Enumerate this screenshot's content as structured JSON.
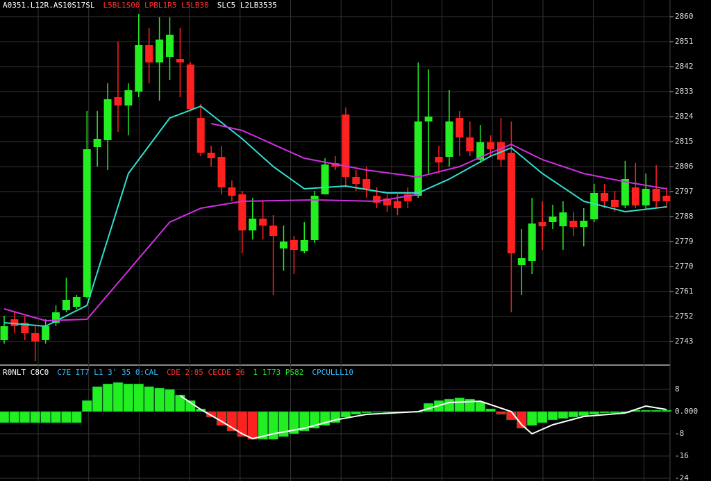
{
  "chart_data": {
    "type": "candlestick",
    "header": [
      {
        "text": "A0351.L12R.AS10S17SL",
        "color": "#ffffff"
      },
      {
        "text": "L5BL1S00 LPBL1R5 L5LB30",
        "color": "#ff3030"
      },
      {
        "text": "SLC5 L2LB3535",
        "color": "#ffffff"
      }
    ],
    "up_color": "#22ee22",
    "down_color": "#ff2020",
    "ylim": [
      2734.75,
      2866
    ],
    "yticks": [
      2860,
      2851,
      2842,
      2833,
      2824,
      2815,
      2806,
      2797,
      2788,
      2779,
      2770,
      2761,
      2752,
      2743
    ],
    "grid": true,
    "ohlc": [
      [
        2743.5,
        2752.25,
        2742.25,
        2748.5
      ],
      [
        2751,
        2753.5,
        2746,
        2748.5
      ],
      [
        2749.75,
        2752.25,
        2743.5,
        2746
      ],
      [
        2746,
        2748.5,
        2736,
        2743
      ],
      [
        2743.5,
        2751,
        2742.25,
        2748.5
      ],
      [
        2749.75,
        2756,
        2748.5,
        2753.5
      ],
      [
        2754.25,
        2766,
        2753.5,
        2758
      ],
      [
        2755.5,
        2759.75,
        2754.75,
        2759
      ],
      [
        2759,
        2826,
        2758.5,
        2812.25
      ],
      [
        2813,
        2826,
        2806,
        2816
      ],
      [
        2815.5,
        2836,
        2804.75,
        2830.25
      ],
      [
        2831,
        2851,
        2818.5,
        2828
      ],
      [
        2828,
        2836,
        2817.25,
        2833.5
      ],
      [
        2833,
        2861,
        2831,
        2849.75
      ],
      [
        2849.75,
        2856,
        2836,
        2843.5
      ],
      [
        2843.5,
        2859.75,
        2829.75,
        2851.75
      ],
      [
        2845.5,
        2859.75,
        2837.25,
        2853.5
      ],
      [
        2844.75,
        2856,
        2831,
        2843.5
      ],
      [
        2842.75,
        2843.5,
        2826,
        2826.75
      ],
      [
        2823.5,
        2828.5,
        2809.75,
        2811
      ],
      [
        2811,
        2813.5,
        2806,
        2809
      ],
      [
        2809.5,
        2813.5,
        2796,
        2798.5
      ],
      [
        2798.5,
        2801,
        2793.5,
        2795.5
      ],
      [
        2796,
        2797.25,
        2774.75,
        2783
      ],
      [
        2783,
        2794.75,
        2779.75,
        2787.25
      ],
      [
        2787.25,
        2793.5,
        2779.75,
        2784.75
      ],
      [
        2784.75,
        2788.5,
        2759.75,
        2781
      ],
      [
        2776.5,
        2784.75,
        2768.5,
        2779
      ],
      [
        2779.5,
        2781,
        2767.25,
        2776
      ],
      [
        2775.5,
        2786,
        2774.75,
        2779.5
      ],
      [
        2779.5,
        2797.25,
        2778.5,
        2795.5
      ],
      [
        2796,
        2809,
        2796,
        2806.75
      ],
      [
        2807.25,
        2809.75,
        2804.75,
        2806
      ],
      [
        2824.75,
        2827.25,
        2798.5,
        2802.25
      ],
      [
        2802.25,
        2804.75,
        2797.25,
        2799.75
      ],
      [
        2801.5,
        2806,
        2794.75,
        2798
      ],
      [
        2795.5,
        2798.5,
        2791,
        2793
      ],
      [
        2794.5,
        2796,
        2789.75,
        2792
      ],
      [
        2793.5,
        2796,
        2788.5,
        2791
      ],
      [
        2796,
        2798.5,
        2791,
        2793.5
      ],
      [
        2795.5,
        2843.5,
        2794.75,
        2822.25
      ],
      [
        2822.25,
        2841,
        2803.5,
        2824
      ],
      [
        2809.5,
        2813.5,
        2803.5,
        2807.5
      ],
      [
        2809.5,
        2833.5,
        2806,
        2822.25
      ],
      [
        2823.5,
        2826,
        2809.75,
        2816.5
      ],
      [
        2816.5,
        2822.25,
        2809.75,
        2811.5
      ],
      [
        2808.5,
        2821,
        2807.25,
        2814.75
      ],
      [
        2814.75,
        2817.25,
        2809.75,
        2812.25
      ],
      [
        2814.75,
        2823.5,
        2806,
        2808.5
      ],
      [
        2811,
        2822.25,
        2753.5,
        2774.75
      ],
      [
        2770.5,
        2783.5,
        2759.75,
        2773
      ],
      [
        2772,
        2794.75,
        2767.25,
        2785.5
      ],
      [
        2786,
        2793.5,
        2776,
        2784.5
      ],
      [
        2786,
        2792.25,
        2783.5,
        2788
      ],
      [
        2784.5,
        2793.5,
        2776,
        2789.5
      ],
      [
        2786.5,
        2789.75,
        2781,
        2784.25
      ],
      [
        2784.25,
        2791,
        2777.25,
        2786.5
      ],
      [
        2787,
        2799.75,
        2786,
        2796.5
      ],
      [
        2796.5,
        2799.75,
        2791,
        2793.5
      ],
      [
        2794,
        2797.25,
        2789.75,
        2791.5
      ],
      [
        2792,
        2808,
        2791,
        2801.5
      ],
      [
        2798.5,
        2807.25,
        2791,
        2792
      ],
      [
        2792,
        2803.5,
        2790.5,
        2798
      ],
      [
        2798,
        2806.5,
        2791,
        2793.5
      ],
      [
        2795.5,
        2798.5,
        2791,
        2793.5
      ]
    ],
    "averages": [
      {
        "color": "#30e0d0",
        "x": [
          0,
          4,
          8,
          12,
          16,
          19,
          23,
          26,
          29,
          33,
          37,
          40,
          43,
          47,
          49,
          52,
          56,
          60,
          64
        ],
        "values": [
          2749.75,
          2748.5,
          2756,
          2803.5,
          2823.5,
          2827.75,
          2816,
          2806,
          2798,
          2799,
          2796.5,
          2796.5,
          2801.5,
          2809.75,
          2812.75,
          2803.5,
          2793.5,
          2789.75,
          2791.5
        ]
      },
      {
        "color": "#d030e0",
        "x": [
          0,
          4,
          8,
          12,
          16,
          19,
          23,
          30,
          36,
          40
        ],
        "values": [
          2754.75,
          2750.5,
          2751,
          2768.5,
          2786,
          2791,
          2793.5,
          2794,
          2793.5,
          2796
        ]
      },
      {
        "color": "#d030e0",
        "x": [
          20,
          23,
          29,
          35,
          40,
          44,
          47,
          49,
          52,
          56,
          60,
          64
        ],
        "values": [
          2821.5,
          2819,
          2809,
          2804.75,
          2802.25,
          2806,
          2811,
          2814,
          2808.5,
          2803.5,
          2800.5,
          2798
        ]
      }
    ],
    "macd": {
      "header": [
        {
          "text": "R0NLT C8C0",
          "color": "#ffffff"
        },
        {
          "text": "C7E IT7 L1 3' 35 0:CAL",
          "color": "#30c0ff"
        },
        {
          "text": "CDE 2:85 CECDE 26",
          "color": "#ff3030"
        },
        {
          "text": "1 1T73 PS82",
          "color": "#22ee22"
        },
        {
          "text": "CPCULLL10",
          "color": "#30c0ff"
        }
      ],
      "ylim": [
        -25,
        16.5
      ],
      "yticks": [
        8,
        {
          "value": 0,
          "label": "0.000"
        },
        -8,
        -16,
        -24
      ],
      "histogram": [
        -4,
        -4,
        -4,
        -4,
        -4,
        -4,
        -4,
        -4,
        4,
        9,
        10,
        10.5,
        10,
        10,
        9,
        8.5,
        8,
        6,
        4,
        1,
        -2,
        -5,
        -7,
        -9,
        -10,
        -10,
        -10,
        -9,
        -8,
        -7,
        -6,
        -5,
        -4,
        -2,
        -1,
        -0.5,
        -0.3,
        -0.3,
        -0.3,
        -0.3,
        -0.3,
        3,
        4,
        4.5,
        5,
        4.5,
        3.5,
        1,
        -1,
        -3,
        -6,
        -5,
        -4,
        -3,
        -2.5,
        -2,
        -1.5,
        -1,
        -0.5,
        -0.5,
        -0.5,
        0.5,
        0.5,
        0.5,
        0.5
      ],
      "signal": {
        "color": "#ffffff",
        "x": [
          17,
          19,
          21,
          23,
          24,
          26,
          29,
          32,
          35,
          40,
          43,
          46,
          49,
          50,
          51,
          53,
          56,
          60,
          62,
          64
        ],
        "values": [
          5.75,
          0.75,
          -3.5,
          -8,
          -9.75,
          -8,
          -6,
          -3,
          -1,
          0,
          3.25,
          3.75,
          0,
          -4.75,
          -8,
          -4.75,
          -1.75,
          -0.5,
          2,
          0.75
        ]
      }
    }
  }
}
